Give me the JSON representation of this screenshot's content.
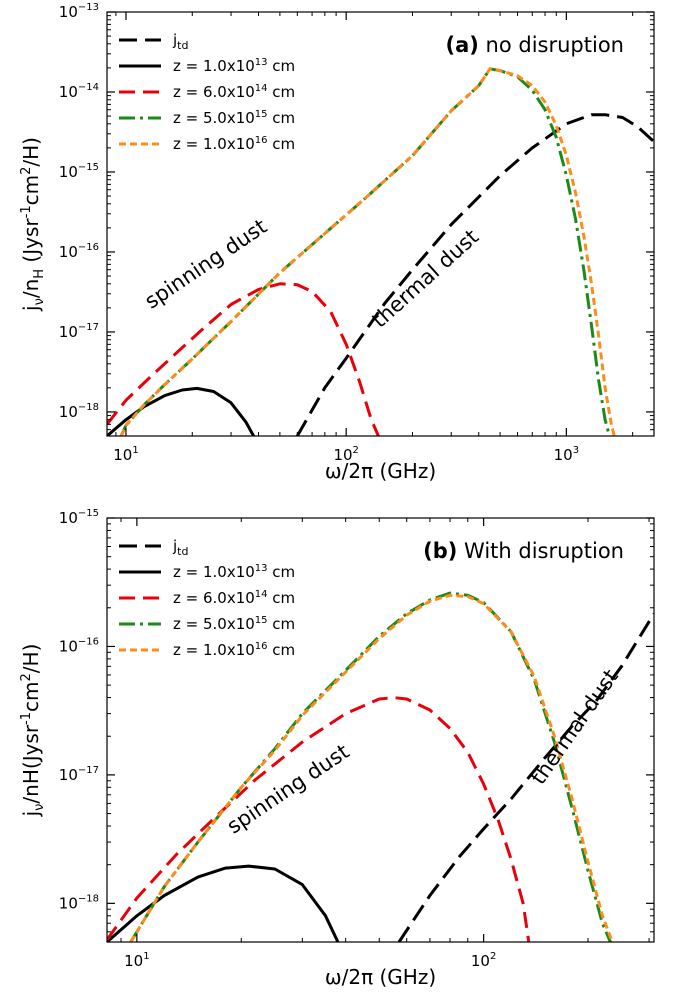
{
  "chart_data": [
    {
      "type": "line",
      "panel_label": "(a)",
      "panel_title": "no disruption",
      "xlabel": "ω/2π (GHz)",
      "ylabel": "j",
      "ylabel_sub": "ν",
      "ylabel_rest": "/n",
      "ylabel_sub2": "H",
      "ylabel_tail": " (Jysr",
      "ylabel_sup1": "-1",
      "ylabel_tail2": "cm",
      "ylabel_sup2": "2",
      "ylabel_tail3": "/H)",
      "xscale": "log",
      "yscale": "log",
      "xlim": [
        8.2,
        2500
      ],
      "ylim": [
        5e-19,
        1e-13
      ],
      "x_ticks": [
        {
          "value": 10,
          "base": "10",
          "exp": "1"
        },
        {
          "value": 100,
          "base": "10",
          "exp": "2"
        },
        {
          "value": 1000,
          "base": "10",
          "exp": "3"
        }
      ],
      "y_ticks": [
        {
          "value": 1e-18,
          "base": "10",
          "exp": "−18"
        },
        {
          "value": 1e-17,
          "base": "10",
          "exp": "−17"
        },
        {
          "value": 1e-16,
          "base": "10",
          "exp": "−16"
        },
        {
          "value": 1e-15,
          "base": "10",
          "exp": "−15"
        },
        {
          "value": 1e-14,
          "base": "10",
          "exp": "−14"
        },
        {
          "value": 1e-13,
          "base": "10",
          "exp": "−13"
        }
      ],
      "annotations": [
        {
          "text": "spinning dust",
          "x": 24,
          "y": 6e-17,
          "rotate": -34
        },
        {
          "text": "thermal dust",
          "x": 240,
          "y": 4e-17,
          "rotate": -42
        }
      ],
      "series": [
        {
          "name": "j",
          "name_sub": "td",
          "color": "#000000",
          "dash": "18,8",
          "width": 3,
          "x": [
            60,
            80,
            100,
            150,
            200,
            300,
            500,
            700,
            1000,
            1300,
            1500,
            1800,
            2100,
            2500
          ],
          "y": [
            5e-19,
            2e-18,
            4.7e-18,
            2.3e-17,
            6e-17,
            2.2e-16,
            9e-16,
            2e-15,
            4e-15,
            5.2e-15,
            5.2e-15,
            4.8e-15,
            3.7e-15,
            2.4e-15
          ]
        },
        {
          "name": "z = 1.0x10",
          "name_sup": "13",
          "name_tail": " cm",
          "color": "#000000",
          "dash": "",
          "width": 3,
          "x": [
            8.2,
            10,
            12,
            15,
            18,
            21,
            25,
            30,
            35,
            38
          ],
          "y": [
            5e-19,
            8e-19,
            1.15e-18,
            1.6e-18,
            1.88e-18,
            1.97e-18,
            1.8e-18,
            1.3e-18,
            7.5e-19,
            5e-19
          ]
        },
        {
          "name": "z = 6.0x10",
          "name_sup": "14",
          "name_tail": " cm",
          "color": "#e8000b",
          "dash": "16,8",
          "width": 3,
          "x": [
            8.2,
            10,
            13,
            17,
            22,
            30,
            40,
            50,
            60,
            70,
            85,
            100,
            115,
            130,
            140
          ],
          "y": [
            7e-19,
            1.4e-18,
            2.8e-18,
            5.5e-18,
            1.05e-17,
            2.2e-17,
            3.4e-17,
            4e-17,
            3.9e-17,
            3.2e-17,
            1.8e-17,
            7e-18,
            2.4e-18,
            8e-19,
            5e-19
          ]
        },
        {
          "name": "z = 5.0x10",
          "name_sup": "15",
          "name_tail": " cm",
          "color": "#1a8a1a",
          "dash": "16,5,3,5",
          "width": 3,
          "x": [
            9.5,
            10,
            12,
            15,
            20,
            30,
            50,
            80,
            120,
            200,
            300,
            400,
            450,
            500,
            600,
            700,
            800,
            900,
            1000,
            1100,
            1200,
            1300,
            1400,
            1500,
            1570
          ],
          "y": [
            5e-19,
            6.8e-19,
            1.2e-18,
            2.2e-18,
            4.6e-18,
            1.35e-17,
            5.5e-17,
            1.7e-16,
            4.5e-16,
            1.6e-15,
            5.8e-15,
            1.2e-14,
            1.95e-14,
            1.85e-14,
            1.55e-14,
            1.05e-14,
            6e-15,
            2.7e-15,
            9e-16,
            2.6e-16,
            6e-17,
            1.2e-17,
            2.5e-18,
            8e-19,
            5e-19
          ]
        },
        {
          "name": "z = 1.0x10",
          "name_sup": "16",
          "name_tail": " cm",
          "color": "#ff8c1a",
          "dash": "7,4",
          "width": 3,
          "x": [
            9.5,
            10,
            12,
            15,
            20,
            30,
            50,
            80,
            120,
            200,
            300,
            400,
            450,
            500,
            600,
            700,
            800,
            900,
            1000,
            1100,
            1200,
            1300,
            1400,
            1500,
            1600,
            1650
          ],
          "y": [
            5e-19,
            6.8e-19,
            1.2e-18,
            2.2e-18,
            4.6e-18,
            1.35e-17,
            5.5e-17,
            1.7e-16,
            4.5e-16,
            1.6e-15,
            5.8e-15,
            1.2e-14,
            1.95e-14,
            1.85e-14,
            1.6e-14,
            1.2e-14,
            7.5e-15,
            3.8e-15,
            1.6e-15,
            5.5e-16,
            1.6e-16,
            4e-17,
            9e-18,
            2e-18,
            7e-19,
            5e-19
          ]
        }
      ]
    },
    {
      "type": "line",
      "panel_label": "(b)",
      "panel_title": "With disruption",
      "xlabel": "ω/2π (GHz)",
      "ylabel": "j",
      "ylabel_sub": "ν",
      "ylabel_rest": "/nH(Jysr",
      "ylabel_sup1": "-1",
      "ylabel_tail2": "cm",
      "ylabel_sup2": "2",
      "ylabel_tail3": "/H)",
      "xscale": "log",
      "yscale": "log",
      "xlim": [
        8.2,
        310
      ],
      "ylim": [
        5e-19,
        1e-15
      ],
      "x_ticks": [
        {
          "value": 10,
          "base": "10",
          "exp": "1"
        },
        {
          "value": 100,
          "base": "10",
          "exp": "2"
        }
      ],
      "y_ticks": [
        {
          "value": 1e-18,
          "base": "10",
          "exp": "−18"
        },
        {
          "value": 1e-17,
          "base": "10",
          "exp": "−17"
        },
        {
          "value": 1e-16,
          "base": "10",
          "exp": "−16"
        },
        {
          "value": 1e-15,
          "base": "10",
          "exp": "−15"
        }
      ],
      "annotations": [
        {
          "text": "spinning dust",
          "x": 28,
          "y": 7e-18,
          "rotate": -34
        },
        {
          "text": "thermal dust",
          "x": 190,
          "y": 2.2e-17,
          "rotate": -55
        }
      ],
      "series": [
        {
          "name": "j",
          "name_sub": "td",
          "color": "#000000",
          "dash": "18,8",
          "width": 3,
          "x": [
            57,
            70,
            85,
            100,
            120,
            150,
            180,
            210,
            250,
            310
          ],
          "y": [
            5e-19,
            1.15e-18,
            2.3e-18,
            3.8e-18,
            6.5e-18,
            1.35e-17,
            2.4e-17,
            3.7e-17,
            7e-17,
            1.8e-16
          ]
        },
        {
          "name": "z = 1.0x10",
          "name_sup": "13",
          "name_tail": " cm",
          "color": "#000000",
          "dash": "",
          "width": 3,
          "x": [
            8.2,
            10,
            12,
            15,
            18,
            21,
            25,
            30,
            35,
            38
          ],
          "y": [
            5e-19,
            8e-19,
            1.15e-18,
            1.6e-18,
            1.88e-18,
            1.95e-18,
            1.85e-18,
            1.4e-18,
            8e-19,
            5e-19
          ]
        },
        {
          "name": "z = 6.0x10",
          "name_sup": "14",
          "name_tail": " cm",
          "color": "#e8000b",
          "dash": "16,8",
          "width": 3,
          "x": [
            8.2,
            10,
            13,
            17,
            22,
            30,
            40,
            50,
            55,
            60,
            70,
            80,
            90,
            100,
            110,
            120,
            130,
            135
          ],
          "y": [
            5.2e-19,
            1.1e-18,
            2.4e-18,
            4.8e-18,
            9.2e-18,
            1.8e-17,
            3e-17,
            3.9e-17,
            4e-17,
            3.9e-17,
            3.2e-17,
            2.3e-17,
            1.5e-17,
            8.5e-18,
            4.5e-18,
            2.2e-18,
            1e-18,
            5e-19
          ]
        },
        {
          "name": "z = 5.0x10",
          "name_sup": "15",
          "name_tail": " cm",
          "color": "#1a8a1a",
          "dash": "16,5,3,5",
          "width": 3,
          "x": [
            9.6,
            10,
            12,
            15,
            20,
            25,
            30,
            40,
            50,
            60,
            70,
            80,
            90,
            100,
            120,
            140,
            160,
            180,
            200,
            220,
            232
          ],
          "y": [
            5e-19,
            6e-19,
            1.35e-18,
            3e-18,
            8e-18,
            1.6e-17,
            3e-17,
            6.5e-17,
            1.2e-16,
            1.8e-16,
            2.3e-16,
            2.6e-16,
            2.5e-16,
            2.2e-16,
            1.3e-16,
            5.5e-17,
            1.8e-17,
            5.5e-18,
            1.8e-18,
            7e-19,
            5e-19
          ]
        },
        {
          "name": "z = 1.0x10",
          "name_sup": "16",
          "name_tail": " cm",
          "color": "#ff8c1a",
          "dash": "7,4",
          "width": 3,
          "x": [
            9.6,
            10,
            12,
            15,
            20,
            25,
            30,
            40,
            50,
            60,
            70,
            80,
            90,
            100,
            120,
            140,
            160,
            180,
            200,
            220,
            235
          ],
          "y": [
            5e-19,
            6e-19,
            1.35e-18,
            3e-18,
            8e-18,
            1.55e-17,
            2.9e-17,
            6.3e-17,
            1.15e-16,
            1.75e-16,
            2.25e-16,
            2.5e-16,
            2.45e-16,
            2.15e-16,
            1.3e-16,
            5.8e-17,
            2e-17,
            6.5e-18,
            2.1e-18,
            8e-19,
            5e-19
          ]
        }
      ]
    }
  ]
}
